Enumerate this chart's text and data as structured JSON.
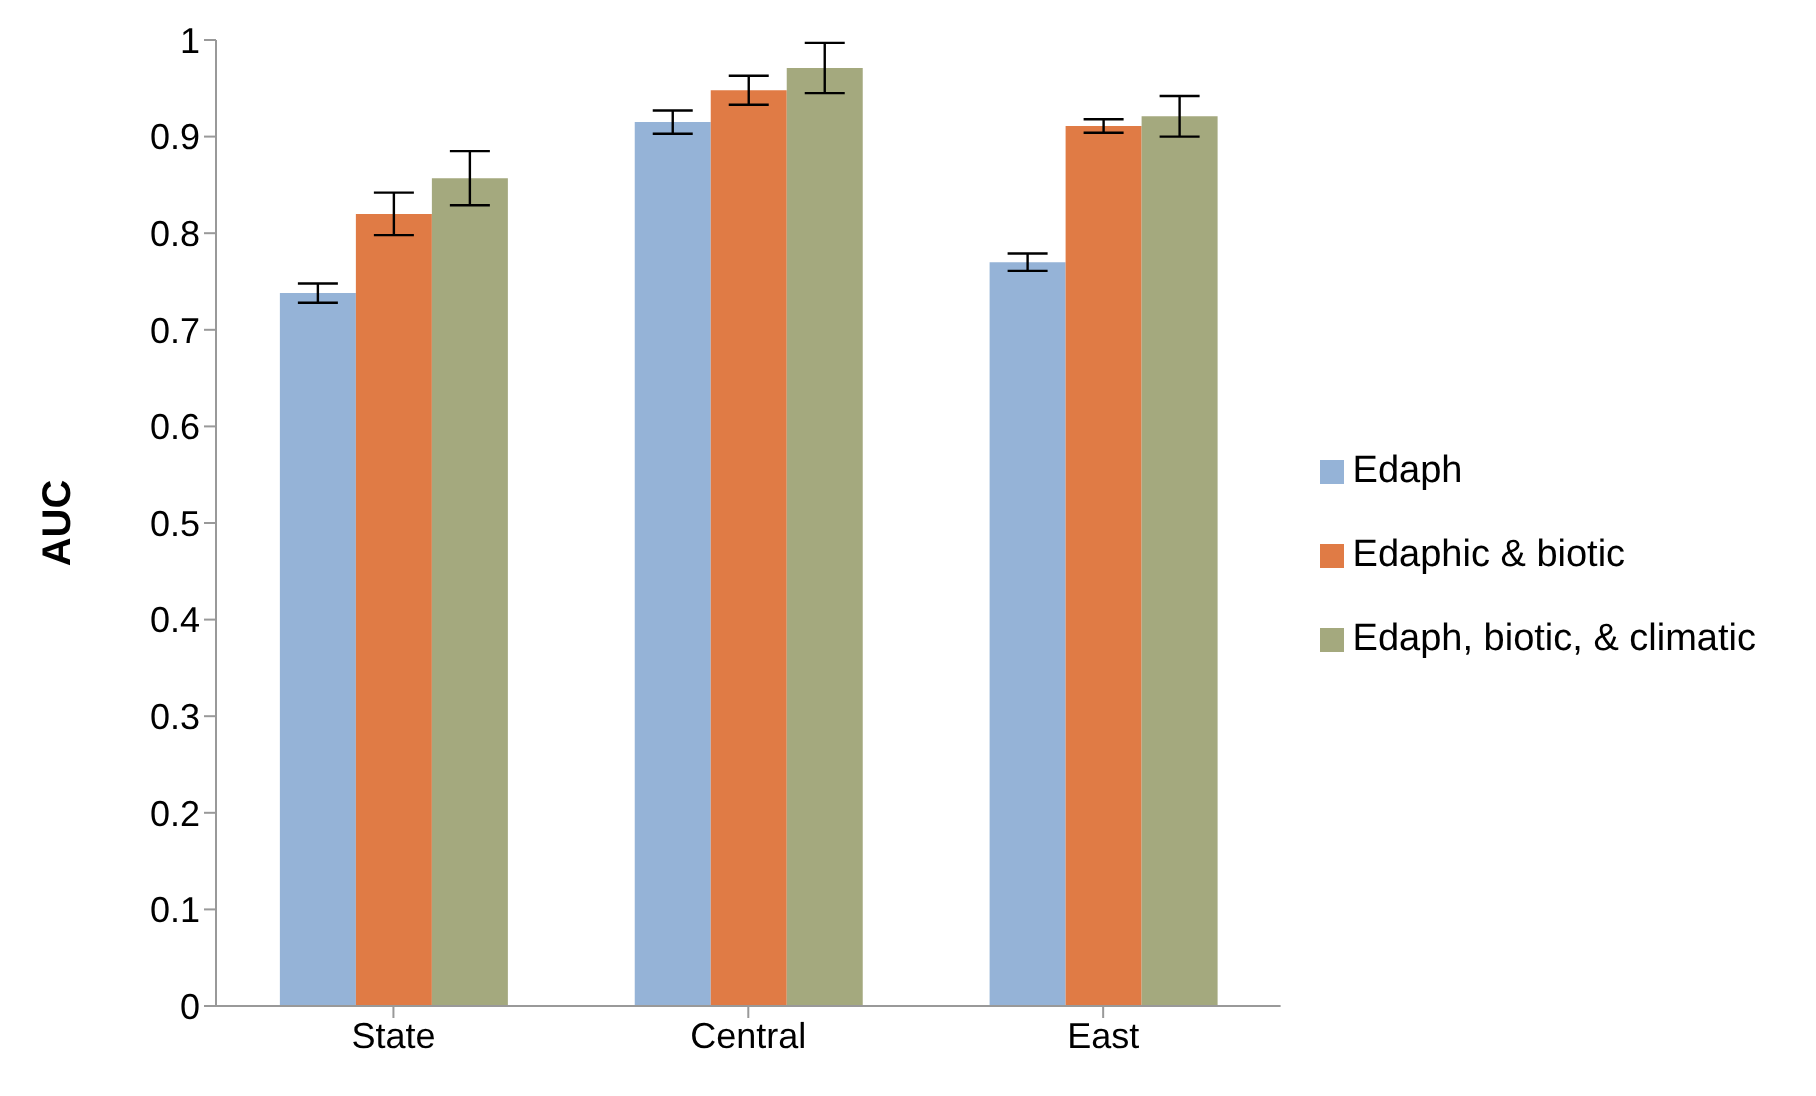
{
  "chart_data": {
    "type": "bar",
    "ylabel": "AUC",
    "categories": [
      "State",
      "Central",
      "East"
    ],
    "series": [
      {
        "name": "Edaph",
        "color": "#95b3d7",
        "values": [
          0.738,
          0.915,
          0.77
        ],
        "errors": [
          0.01,
          0.012,
          0.009
        ]
      },
      {
        "name": "Edaphic & biotic",
        "color": "#e07b45",
        "values": [
          0.82,
          0.948,
          0.911
        ],
        "errors": [
          0.022,
          0.015,
          0.007
        ]
      },
      {
        "name": "Edaph, biotic, & climatic",
        "color": "#a4a97e",
        "values": [
          0.857,
          0.971,
          0.921
        ],
        "errors": [
          0.028,
          0.026,
          0.021
        ]
      }
    ],
    "ylim": [
      0,
      1
    ],
    "yticks": [
      0,
      0.1,
      0.2,
      0.3,
      0.4,
      0.5,
      0.6,
      0.7,
      0.8,
      0.9,
      1
    ],
    "grid": false,
    "legend": "right"
  }
}
